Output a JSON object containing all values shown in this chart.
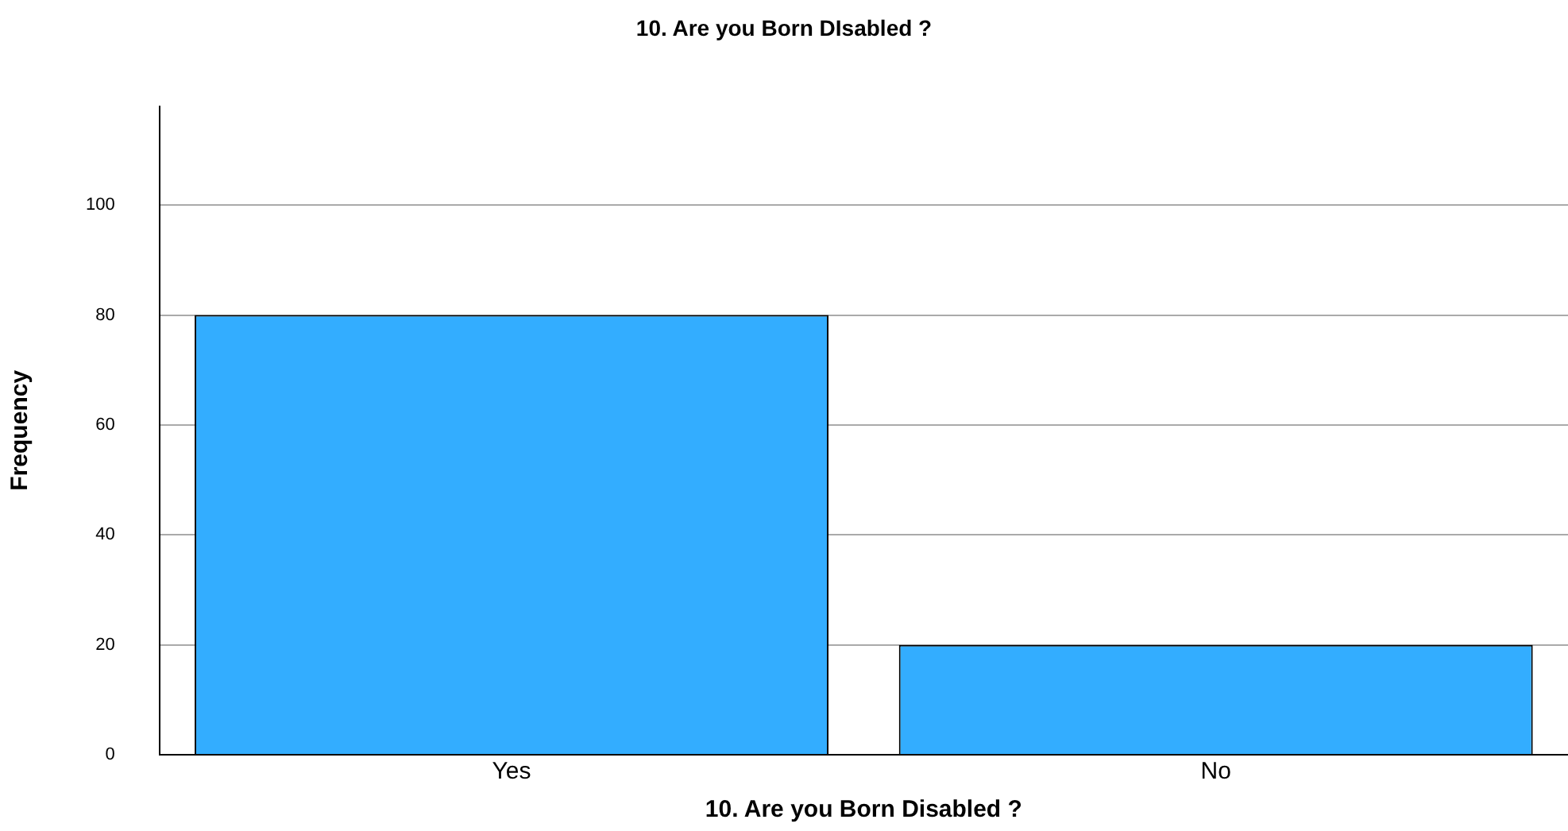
{
  "chart_data": {
    "type": "bar",
    "title": "10. Are you Born DIsabled ?",
    "xlabel": "10. Are you Born Disabled ?",
    "ylabel": "Frequency",
    "categories": [
      "Yes",
      "No"
    ],
    "values": [
      80,
      20
    ],
    "color": "#33adff",
    "ylim": [
      0,
      118
    ],
    "yticks": [
      0,
      20,
      40,
      60,
      80,
      100
    ],
    "grid": "y"
  }
}
